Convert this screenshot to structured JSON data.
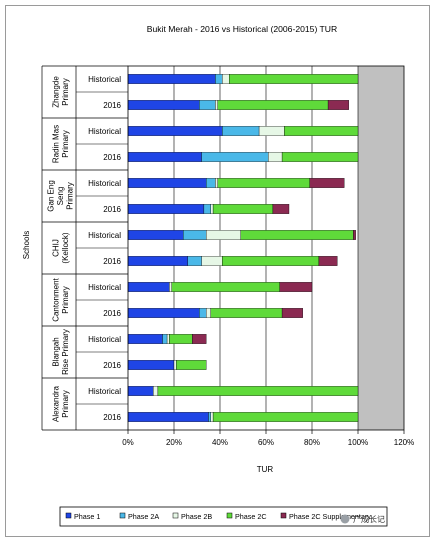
{
  "chart_data": {
    "type": "bar",
    "orientation": "horizontal",
    "stacked": true,
    "title": "Bukit Merah - 2016 vs Historical (2006-2015) TUR",
    "xlabel": "TUR",
    "ylabel": "Schools",
    "xlim": [
      0,
      120
    ],
    "xticks": [
      "0%",
      "20%",
      "40%",
      "60%",
      "80%",
      "100%",
      "120%"
    ],
    "grid": true,
    "legend_position": "bottom",
    "colors": {
      "phase1": "#1f45e6",
      "phase2a": "#4ab8e8",
      "phase2b": "#e6f7e6",
      "phase2c": "#5fda3a",
      "phase2csupp": "#8b2a52",
      "plot_bg": "#c0c0c0",
      "capacity_bg": "#ffffff"
    },
    "legend": [
      "Phase 1",
      "Phase 2A",
      "Phase 2B",
      "Phase 2C",
      "Phase 2C Supplementary"
    ],
    "groups": [
      {
        "school": "Zhangde Primary",
        "label_lines": [
          "Zhangde",
          "Primary"
        ],
        "bars": [
          {
            "label": "Historical",
            "values": [
              38,
              3,
              3,
              56,
              0
            ]
          },
          {
            "label": "2016",
            "values": [
              31,
              7,
              1,
              48,
              9
            ]
          }
        ]
      },
      {
        "school": "Radin Mas Primary",
        "label_lines": [
          "Radin Mas",
          "Primary"
        ],
        "bars": [
          {
            "label": "Historical",
            "values": [
              41,
              16,
              11,
              32,
              0
            ]
          },
          {
            "label": "2016",
            "values": [
              32,
              29,
              6,
              33,
              0
            ]
          }
        ]
      },
      {
        "school": "Gan Eng Seng Primary",
        "label_lines": [
          "Gan Eng",
          "Seng",
          "Primary"
        ],
        "bars": [
          {
            "label": "Historical",
            "values": [
              34,
              4,
              1,
              40,
              15
            ]
          },
          {
            "label": "2016",
            "values": [
              33,
              3,
              1,
              26,
              7
            ]
          }
        ]
      },
      {
        "school": "CHIJ (Kellock)",
        "label_lines": [
          "CHIJ",
          "(Kellock)"
        ],
        "bars": [
          {
            "label": "Historical",
            "values": [
              24,
              10,
              15,
              49,
              1
            ]
          },
          {
            "label": "2016",
            "values": [
              26,
              6,
              9,
              42,
              8
            ]
          }
        ]
      },
      {
        "school": "Cantonment Primary",
        "label_lines": [
          "Cantonment",
          "Primary"
        ],
        "bars": [
          {
            "label": "Historical",
            "values": [
              18,
              0,
              1,
              47,
              14
            ]
          },
          {
            "label": "2016",
            "values": [
              31,
              3,
              2,
              31,
              9
            ]
          }
        ]
      },
      {
        "school": "Blangah Rise Primary",
        "label_lines": [
          "Blangah",
          "Rise Primary"
        ],
        "bars": [
          {
            "label": "Historical",
            "values": [
              15,
              2,
              1,
              10,
              6
            ]
          },
          {
            "label": "2016",
            "values": [
              20,
              0,
              1,
              13,
              0
            ]
          }
        ]
      },
      {
        "school": "Alexandra Primary",
        "label_lines": [
          "Alexandra",
          "Primary"
        ],
        "bars": [
          {
            "label": "Historical",
            "values": [
              11,
              0,
              2,
              87,
              0
            ]
          },
          {
            "label": "2016",
            "values": [
              35,
              1,
              1,
              63,
              0
            ]
          }
        ]
      }
    ]
  },
  "watermark": {
    "text": "广成长记",
    "icon": "wechat-icon"
  }
}
